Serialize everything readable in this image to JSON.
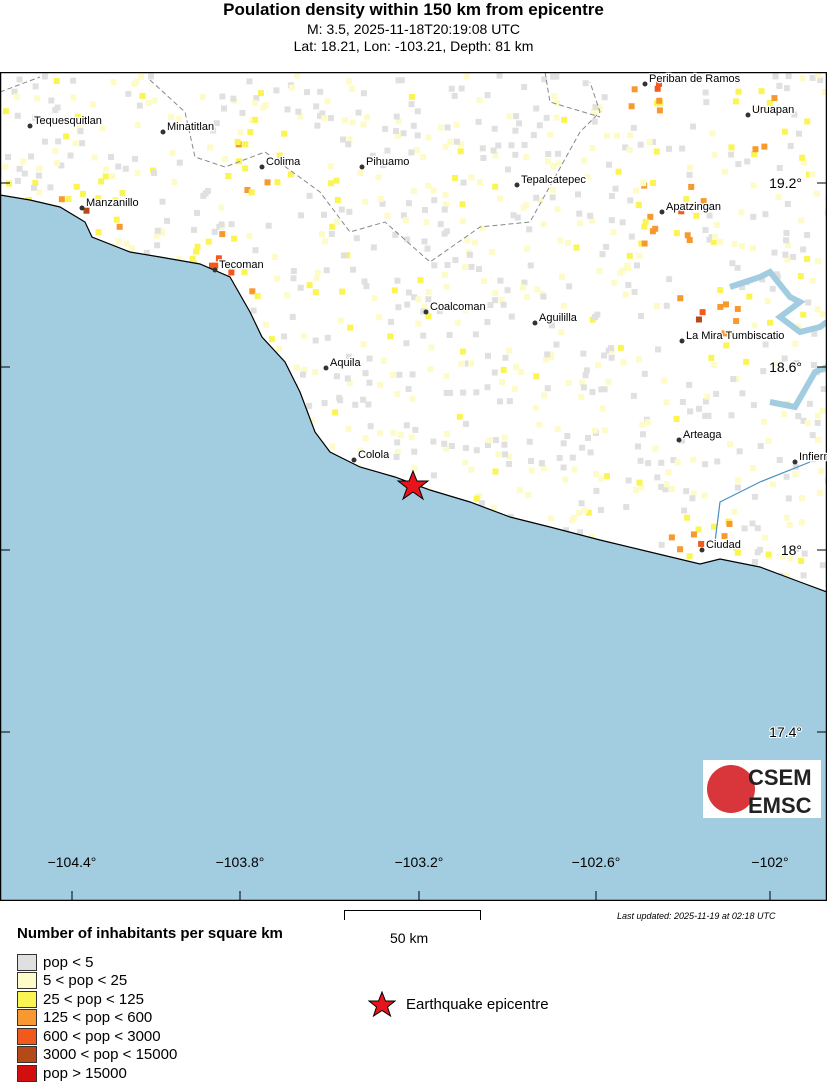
{
  "title": "Poulation density within 150 km from epicentre",
  "subtitle": "M: 3.5,  2025-11-18T20:19:08 UTC",
  "location": "Lat: 18.21, Lon: -103.21, Depth: 81 km",
  "map": {
    "lon_labels": [
      "−104.4°",
      "−103.8°",
      "−103.2°",
      "−102.6°",
      "−102°"
    ],
    "lat_labels": [
      "19.2°",
      "18.6°",
      "18°",
      "17.4°"
    ],
    "cities": [
      "Periban de Ramos",
      "Uruapan",
      "Tequesquitlan",
      "Minatitlan",
      "Colima",
      "Pihuamo",
      "Tepalcatepec",
      "Manzanillo",
      "Apatzingan",
      "Tecoman",
      "Coalcoman",
      "Aguililla",
      "La Mira Tumbiscatio",
      "Aquila",
      "Arteaga",
      "Colola",
      "Infiernillo",
      "Ciudad"
    ],
    "colors": {
      "ocean": "#a2cde0",
      "land": "#ffffff",
      "coast": "#000000",
      "epicentre": "#e8141c"
    },
    "logo": "CSEM EMSC"
  },
  "last_updated": "Last updated: 2025-11-19 at 02:18 UTC",
  "scale_bar": "50 km",
  "legend": {
    "title": "Number of inhabitants per square km",
    "items": [
      {
        "label": "pop < 5",
        "color": "#e0e0e0"
      },
      {
        "label": "5 < pop < 25",
        "color": "#fdfbc8"
      },
      {
        "label": "25 < pop < 125",
        "color": "#faf553"
      },
      {
        "label": "125 < pop < 600",
        "color": "#f7992f"
      },
      {
        "label": "600 < pop < 3000",
        "color": "#f15a1c"
      },
      {
        "label": "3000 < pop < 15000",
        "color": "#b44a18"
      },
      {
        "label": "pop > 15000",
        "color": "#d20f0f"
      }
    ],
    "epicentre_label": "Earthquake epicentre"
  }
}
